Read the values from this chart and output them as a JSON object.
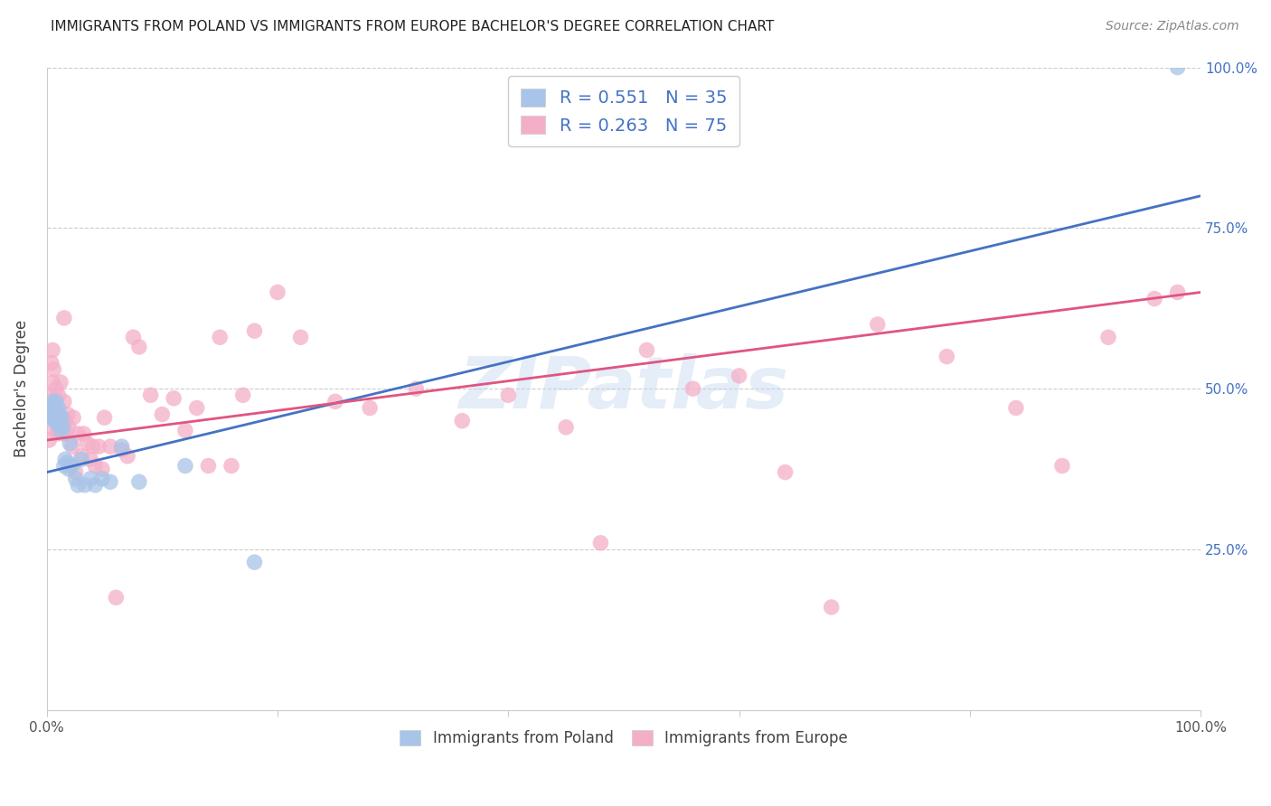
{
  "title": "IMMIGRANTS FROM POLAND VS IMMIGRANTS FROM EUROPE BACHELOR'S DEGREE CORRELATION CHART",
  "source": "Source: ZipAtlas.com",
  "ylabel": "Bachelor's Degree",
  "xlim": [
    0.0,
    1.0
  ],
  "ylim": [
    0.0,
    1.0
  ],
  "R_poland": 0.551,
  "N_poland": 35,
  "R_europe": 0.263,
  "N_europe": 75,
  "color_poland": "#a8c4e8",
  "color_europe": "#f4afc8",
  "color_line_poland": "#4472c4",
  "color_line_europe": "#e05580",
  "legend_label_poland": "Immigrants from Poland",
  "legend_label_europe": "Immigrants from Europe",
  "poland_x": [
    0.002,
    0.003,
    0.004,
    0.005,
    0.005,
    0.006,
    0.007,
    0.008,
    0.008,
    0.009,
    0.01,
    0.01,
    0.011,
    0.012,
    0.013,
    0.014,
    0.015,
    0.016,
    0.018,
    0.019,
    0.02,
    0.022,
    0.025,
    0.027,
    0.03,
    0.033,
    0.038,
    0.042,
    0.048,
    0.055,
    0.065,
    0.08,
    0.12,
    0.18,
    0.98
  ],
  "poland_y": [
    0.455,
    0.47,
    0.46,
    0.48,
    0.455,
    0.475,
    0.45,
    0.46,
    0.48,
    0.445,
    0.45,
    0.47,
    0.46,
    0.435,
    0.455,
    0.44,
    0.38,
    0.39,
    0.385,
    0.375,
    0.415,
    0.38,
    0.36,
    0.35,
    0.39,
    0.35,
    0.36,
    0.35,
    0.36,
    0.355,
    0.41,
    0.355,
    0.38,
    0.23,
    1.0
  ],
  "europe_x": [
    0.002,
    0.003,
    0.004,
    0.004,
    0.005,
    0.005,
    0.006,
    0.006,
    0.007,
    0.008,
    0.008,
    0.009,
    0.01,
    0.01,
    0.011,
    0.012,
    0.013,
    0.014,
    0.015,
    0.015,
    0.016,
    0.017,
    0.018,
    0.019,
    0.02,
    0.022,
    0.023,
    0.025,
    0.027,
    0.03,
    0.032,
    0.035,
    0.038,
    0.04,
    0.042,
    0.045,
    0.048,
    0.05,
    0.055,
    0.06,
    0.065,
    0.07,
    0.075,
    0.08,
    0.09,
    0.1,
    0.11,
    0.12,
    0.13,
    0.14,
    0.15,
    0.16,
    0.17,
    0.18,
    0.2,
    0.22,
    0.25,
    0.28,
    0.32,
    0.36,
    0.4,
    0.45,
    0.48,
    0.52,
    0.56,
    0.6,
    0.64,
    0.68,
    0.72,
    0.78,
    0.84,
    0.88,
    0.92,
    0.96,
    0.98
  ],
  "europe_y": [
    0.42,
    0.49,
    0.54,
    0.44,
    0.51,
    0.56,
    0.47,
    0.53,
    0.475,
    0.455,
    0.5,
    0.43,
    0.46,
    0.49,
    0.445,
    0.51,
    0.445,
    0.43,
    0.48,
    0.61,
    0.45,
    0.43,
    0.46,
    0.44,
    0.38,
    0.41,
    0.455,
    0.37,
    0.43,
    0.395,
    0.43,
    0.415,
    0.39,
    0.41,
    0.38,
    0.41,
    0.375,
    0.455,
    0.41,
    0.175,
    0.405,
    0.395,
    0.58,
    0.565,
    0.49,
    0.46,
    0.485,
    0.435,
    0.47,
    0.38,
    0.58,
    0.38,
    0.49,
    0.59,
    0.65,
    0.58,
    0.48,
    0.47,
    0.5,
    0.45,
    0.49,
    0.44,
    0.26,
    0.56,
    0.5,
    0.52,
    0.37,
    0.16,
    0.6,
    0.55,
    0.47,
    0.38,
    0.58,
    0.64,
    0.65
  ],
  "line_poland_x0": 0.0,
  "line_poland_y0": 0.37,
  "line_poland_x1": 1.0,
  "line_poland_y1": 0.8,
  "line_europe_x0": 0.0,
  "line_europe_y0": 0.42,
  "line_europe_x1": 1.0,
  "line_europe_y1": 0.65
}
